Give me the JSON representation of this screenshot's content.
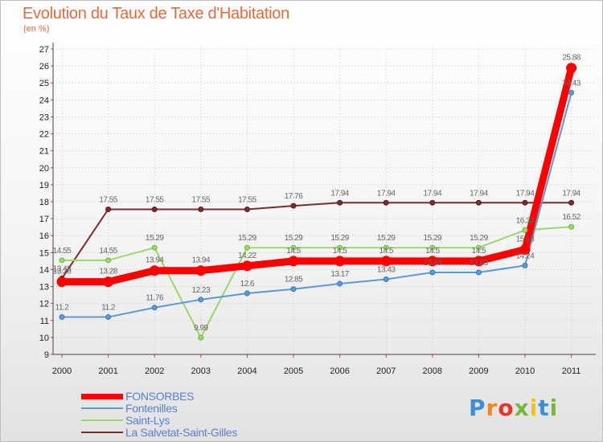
{
  "title": "Evolution du Taux de Taxe d'Habitation",
  "subtitle": "(en %)",
  "logo": {
    "text": "Proxiti",
    "colors": [
      "#3b8fd6",
      "#f08a1c",
      "#e2352b",
      "#7ab83a",
      "#f2c21a",
      "#3b8fd6",
      "#7ab83a"
    ]
  },
  "chart_data": {
    "type": "line",
    "x": [
      "2000",
      "2001",
      "2002",
      "2003",
      "2004",
      "2005",
      "2006",
      "2007",
      "2008",
      "2009",
      "2010",
      "2011"
    ],
    "ylim": [
      9,
      27
    ],
    "yticks": [
      9,
      10,
      11,
      12,
      13,
      14,
      15,
      16,
      17,
      18,
      19,
      20,
      21,
      22,
      23,
      24,
      25,
      26,
      27
    ],
    "grid": "dotted",
    "legend_position": "bottom-left",
    "series": [
      {
        "name": "FONSORBES",
        "color": "#ff0000",
        "values": [
          13.28,
          13.28,
          13.94,
          13.94,
          14.22,
          14.5,
          14.5,
          14.5,
          14.5,
          14.5,
          15.18,
          25.88
        ],
        "labels": [
          "13.28",
          "13.28",
          "13.94",
          "13.94",
          "14.22",
          "14.5",
          "14.5",
          "14.5",
          "14.5",
          "14.5",
          "15.18",
          "25.88"
        ]
      },
      {
        "name": "Fontenilles",
        "color": "#5b9bd5",
        "values": [
          11.2,
          11.2,
          11.76,
          12.23,
          12.6,
          12.85,
          13.17,
          13.43,
          13.83,
          13.83,
          14.24,
          24.43
        ],
        "labels": [
          "11.2",
          "11.2",
          "11.76",
          "12.23",
          "12.6",
          "12.85",
          "13.17",
          "13.43",
          "13.83",
          "13.83",
          "14.24",
          "24.43"
        ]
      },
      {
        "name": "Saint-Lys",
        "color": "#9bd86b",
        "values": [
          14.55,
          14.55,
          15.29,
          9.99,
          15.29,
          15.29,
          15.29,
          15.29,
          15.29,
          15.29,
          16.33,
          16.52
        ],
        "labels": [
          "14.55",
          "14.55",
          "15.29",
          "9.99",
          "15.29",
          "15.29",
          "15.29",
          "15.29",
          "15.29",
          "15.29",
          "16.33",
          "16.52"
        ]
      },
      {
        "name": "La Salvetat-Saint-Gilles",
        "color": "#7a2e2e",
        "values": [
          13.48,
          17.55,
          17.55,
          17.55,
          17.55,
          17.76,
          17.94,
          17.94,
          17.94,
          17.94,
          17.94,
          17.94
        ],
        "labels": [
          "13.48",
          "17.55",
          "17.55",
          "17.55",
          "17.55",
          "17.76",
          "17.94",
          "17.94",
          "17.94",
          "17.94",
          "17.94",
          "17.94"
        ]
      }
    ]
  }
}
